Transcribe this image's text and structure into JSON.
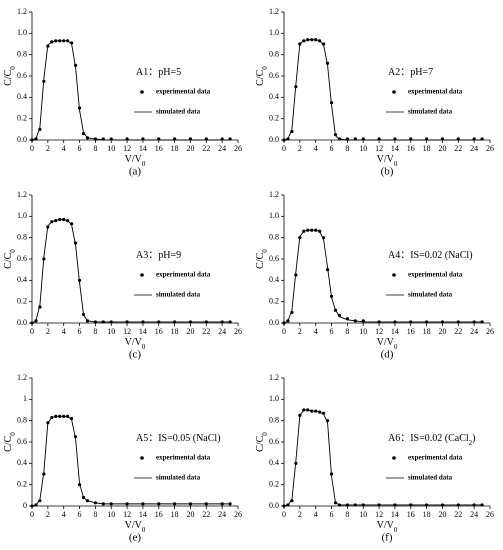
{
  "chart_data": [
    {
      "type": "line",
      "panel": "(a)",
      "annotation": [
        "A1：pH=5"
      ],
      "xlabel": [
        "V/V",
        "0"
      ],
      "ylabel": [
        "C/C",
        "0"
      ],
      "x": [
        0,
        0.5,
        1,
        1.5,
        2,
        2.5,
        3,
        3.5,
        4,
        4.5,
        5,
        5.5,
        6,
        6.5,
        7,
        8,
        9,
        10,
        12,
        14,
        16,
        18,
        20,
        22,
        24,
        25
      ],
      "series": [
        {
          "name": "experimental data",
          "style": "markers",
          "color": "#000000",
          "values": [
            0,
            0.01,
            0.1,
            0.55,
            0.88,
            0.92,
            0.93,
            0.93,
            0.93,
            0.93,
            0.91,
            0.7,
            0.3,
            0.06,
            0.02,
            0.01,
            0.01,
            0.01,
            0.01,
            0.01,
            0.01,
            0.01,
            0.01,
            0.01,
            0.01,
            0.01
          ]
        },
        {
          "name": "simulated data",
          "style": "line",
          "color": "#000000",
          "values": [
            0,
            0.01,
            0.12,
            0.58,
            0.89,
            0.92,
            0.93,
            0.93,
            0.93,
            0.93,
            0.9,
            0.68,
            0.28,
            0.07,
            0.02,
            0.01,
            0,
            0,
            0,
            0,
            0,
            0,
            0,
            0,
            0,
            0
          ]
        }
      ],
      "xlim": [
        0,
        26
      ],
      "xticks": [
        0,
        2,
        4,
        6,
        8,
        10,
        12,
        14,
        16,
        18,
        20,
        22,
        24,
        26
      ],
      "ylim": [
        0,
        1.2
      ],
      "yticks": [
        {
          "value": 0,
          "label": "0.0"
        },
        {
          "value": 0.2,
          "label": "0.2"
        },
        {
          "value": 0.4,
          "label": "0.4"
        },
        {
          "value": 0.6,
          "label": "0.6"
        },
        {
          "value": 0.8,
          "label": "0.8"
        },
        {
          "value": 1,
          "label": "1.0"
        },
        {
          "value": 1.2,
          "label": "1.2"
        }
      ]
    },
    {
      "type": "line",
      "panel": "(b)",
      "annotation": [
        "A2：pH=7"
      ],
      "xlabel": [
        "V/V",
        "0"
      ],
      "ylabel": [
        "C/C",
        "0"
      ],
      "x": [
        0,
        0.5,
        1,
        1.5,
        2,
        2.5,
        3,
        3.5,
        4,
        4.5,
        5,
        5.5,
        6,
        6.5,
        7,
        8,
        9,
        10,
        12,
        14,
        16,
        18,
        20,
        22,
        24,
        25
      ],
      "series": [
        {
          "name": "experimental data",
          "style": "markers",
          "color": "#000000",
          "values": [
            0,
            0.01,
            0.08,
            0.5,
            0.9,
            0.93,
            0.94,
            0.94,
            0.94,
            0.93,
            0.9,
            0.72,
            0.35,
            0.05,
            0.01,
            0.01,
            0.01,
            0.01,
            0.01,
            0.01,
            0.01,
            0.01,
            0.01,
            0.01,
            0.01,
            0.01
          ]
        },
        {
          "name": "simulated data",
          "style": "line",
          "color": "#000000",
          "values": [
            0,
            0.01,
            0.1,
            0.52,
            0.9,
            0.93,
            0.94,
            0.94,
            0.94,
            0.93,
            0.89,
            0.7,
            0.33,
            0.04,
            0.01,
            0,
            0,
            0,
            0,
            0,
            0,
            0,
            0,
            0,
            0,
            0
          ]
        }
      ],
      "xlim": [
        0,
        26
      ],
      "xticks": [
        0,
        2,
        4,
        6,
        8,
        10,
        12,
        14,
        16,
        18,
        20,
        22,
        24,
        26
      ],
      "ylim": [
        0,
        1.2
      ],
      "yticks": [
        {
          "value": 0,
          "label": "0.0"
        },
        {
          "value": 0.2,
          "label": "0.2"
        },
        {
          "value": 0.4,
          "label": "0.4"
        },
        {
          "value": 0.6,
          "label": "0.6"
        },
        {
          "value": 0.8,
          "label": "0.8"
        },
        {
          "value": 1,
          "label": "1.0"
        },
        {
          "value": 1.2,
          "label": "1.2"
        }
      ]
    },
    {
      "type": "line",
      "panel": "(c)",
      "annotation": [
        "A3：pH=9"
      ],
      "xlabel": [
        "V/V",
        "0"
      ],
      "ylabel": [
        "C/C",
        "0"
      ],
      "x": [
        0,
        0.5,
        1,
        1.5,
        2,
        2.5,
        3,
        3.5,
        4,
        4.5,
        5,
        5.5,
        6,
        6.5,
        7,
        8,
        9,
        10,
        12,
        14,
        16,
        18,
        20,
        22,
        24,
        25
      ],
      "series": [
        {
          "name": "experimental data",
          "style": "markers",
          "color": "#000000",
          "values": [
            0,
            0.02,
            0.15,
            0.6,
            0.9,
            0.95,
            0.96,
            0.97,
            0.97,
            0.96,
            0.93,
            0.75,
            0.4,
            0.08,
            0.02,
            0.01,
            0.01,
            0.01,
            0.01,
            0.01,
            0.01,
            0.01,
            0.01,
            0.01,
            0.01,
            0.01
          ]
        },
        {
          "name": "simulated data",
          "style": "line",
          "color": "#000000",
          "values": [
            0,
            0.02,
            0.17,
            0.62,
            0.91,
            0.95,
            0.96,
            0.97,
            0.97,
            0.96,
            0.92,
            0.73,
            0.38,
            0.08,
            0.02,
            0.01,
            0.01,
            0.01,
            0.01,
            0.01,
            0.01,
            0.01,
            0.01,
            0.01,
            0.01,
            0.01
          ]
        }
      ],
      "xlim": [
        0,
        26
      ],
      "xticks": [
        0,
        2,
        4,
        6,
        8,
        10,
        12,
        14,
        16,
        18,
        20,
        22,
        24,
        26
      ],
      "ylim": [
        0,
        1.2
      ],
      "yticks": [
        {
          "value": 0,
          "label": "0.0"
        },
        {
          "value": 0.2,
          "label": "0.2"
        },
        {
          "value": 0.4,
          "label": "0.4"
        },
        {
          "value": 0.6,
          "label": "0.6"
        },
        {
          "value": 0.8,
          "label": "0.8"
        },
        {
          "value": 1,
          "label": "1.0"
        },
        {
          "value": 1.2,
          "label": "1.2"
        }
      ]
    },
    {
      "type": "line",
      "panel": "(d)",
      "annotation": [
        "A4：IS=0.02 (NaCl)"
      ],
      "xlabel": [
        "V/V",
        "0"
      ],
      "ylabel": [
        "C/C",
        "0"
      ],
      "x": [
        0,
        0.5,
        1,
        1.5,
        2,
        2.5,
        3,
        3.5,
        4,
        4.5,
        5,
        5.5,
        6,
        6.5,
        7,
        8,
        9,
        10,
        12,
        14,
        16,
        18,
        20,
        22,
        24,
        25
      ],
      "series": [
        {
          "name": "experimental data",
          "style": "markers",
          "color": "#000000",
          "values": [
            0,
            0.02,
            0.1,
            0.45,
            0.8,
            0.86,
            0.87,
            0.87,
            0.87,
            0.86,
            0.8,
            0.5,
            0.25,
            0.12,
            0.07,
            0.04,
            0.02,
            0.02,
            0.01,
            0.01,
            0.01,
            0.01,
            0.01,
            0.01,
            0.01,
            0.01
          ]
        },
        {
          "name": "simulated data",
          "style": "line",
          "color": "#000000",
          "values": [
            0,
            0.02,
            0.12,
            0.48,
            0.81,
            0.86,
            0.87,
            0.87,
            0.87,
            0.86,
            0.78,
            0.52,
            0.24,
            0.12,
            0.06,
            0.03,
            0.02,
            0.01,
            0.01,
            0.01,
            0.01,
            0.01,
            0.01,
            0.01,
            0.01,
            0.01
          ]
        }
      ],
      "xlim": [
        0,
        26
      ],
      "xticks": [
        0,
        2,
        4,
        6,
        8,
        10,
        12,
        14,
        16,
        18,
        20,
        22,
        24,
        26
      ],
      "ylim": [
        0,
        1.2
      ],
      "yticks": [
        {
          "value": 0,
          "label": "0.0"
        },
        {
          "value": 0.2,
          "label": "0.2"
        },
        {
          "value": 0.4,
          "label": "0.4"
        },
        {
          "value": 0.6,
          "label": "0.6"
        },
        {
          "value": 0.8,
          "label": "0.8"
        },
        {
          "value": 1,
          "label": "1.0"
        },
        {
          "value": 1.2,
          "label": "1.2"
        }
      ]
    },
    {
      "type": "line",
      "panel": "(e)",
      "annotation": [
        "A5：IS=0.05 (NaCl)"
      ],
      "xlabel": [
        "V/V",
        "0"
      ],
      "ylabel": [
        "C/C",
        "0"
      ],
      "x": [
        0,
        0.5,
        1,
        1.5,
        2,
        2.5,
        3,
        3.5,
        4,
        4.5,
        5,
        5.5,
        6,
        6.5,
        7,
        8,
        9,
        10,
        12,
        14,
        16,
        18,
        20,
        22,
        24,
        25
      ],
      "series": [
        {
          "name": "experimental data",
          "style": "markers",
          "color": "#000000",
          "values": [
            0,
            0.01,
            0.05,
            0.3,
            0.78,
            0.83,
            0.84,
            0.84,
            0.84,
            0.84,
            0.82,
            0.65,
            0.2,
            0.08,
            0.05,
            0.03,
            0.02,
            0.02,
            0.02,
            0.02,
            0.02,
            0.02,
            0.02,
            0.02,
            0.02,
            0.02
          ]
        },
        {
          "name": "simulated data",
          "style": "line",
          "color": "#000000",
          "values": [
            0,
            0.01,
            0.06,
            0.32,
            0.78,
            0.83,
            0.84,
            0.84,
            0.84,
            0.84,
            0.81,
            0.63,
            0.21,
            0.08,
            0.05,
            0.03,
            0.02,
            0.02,
            0.02,
            0.02,
            0.02,
            0.02,
            0.02,
            0.02,
            0.02,
            0.02
          ]
        }
      ],
      "xlim": [
        0,
        26
      ],
      "xticks": [
        0,
        2,
        4,
        6,
        8,
        10,
        12,
        14,
        16,
        18,
        20,
        22,
        24,
        26
      ],
      "ylim": [
        0,
        1.2
      ],
      "yticks": [
        0,
        0.2,
        0.4,
        0.6,
        0.8,
        1,
        1.2
      ]
    },
    {
      "type": "line",
      "panel": "(f)",
      "annotation": [
        "A6：IS=0.02 (CaCl",
        "2",
        ")"
      ],
      "xlabel": [
        "V/V",
        "0"
      ],
      "ylabel": [
        "C/C",
        "0"
      ],
      "x": [
        0,
        0.5,
        1,
        1.5,
        2,
        2.5,
        3,
        3.5,
        4,
        4.5,
        5,
        5.5,
        6,
        6.5,
        7,
        8,
        9,
        10,
        12,
        14,
        16,
        18,
        20,
        22,
        24,
        25
      ],
      "series": [
        {
          "name": "experimental data",
          "style": "markers",
          "color": "#000000",
          "values": [
            0,
            0.01,
            0.05,
            0.4,
            0.85,
            0.9,
            0.9,
            0.89,
            0.89,
            0.88,
            0.87,
            0.8,
            0.3,
            0.03,
            0.01,
            0.01,
            0.01,
            0.01,
            0.01,
            0.01,
            0.01,
            0.01,
            0.01,
            0.01,
            0.01,
            0.01
          ]
        },
        {
          "name": "simulated data",
          "style": "line",
          "color": "#000000",
          "values": [
            0,
            0.01,
            0.06,
            0.42,
            0.85,
            0.9,
            0.9,
            0.89,
            0.89,
            0.88,
            0.86,
            0.78,
            0.28,
            0.03,
            0.01,
            0.01,
            0.01,
            0.01,
            0.01,
            0.01,
            0.01,
            0.01,
            0.01,
            0.01,
            0.01,
            0.01
          ]
        }
      ],
      "xlim": [
        0,
        26
      ],
      "xticks": [
        0,
        2,
        4,
        6,
        8,
        10,
        12,
        14,
        16,
        18,
        20,
        22,
        24,
        26
      ],
      "ylim": [
        0,
        1.2
      ],
      "yticks": [
        {
          "value": 0,
          "label": "0.0"
        },
        {
          "value": 0.2,
          "label": "0.2"
        },
        {
          "value": 0.4,
          "label": "0.4"
        },
        {
          "value": 0.6,
          "label": "0.6"
        },
        {
          "value": 0.8,
          "label": "0.8"
        },
        {
          "value": 1,
          "label": "1.0"
        },
        {
          "value": 1.2,
          "label": "1.2"
        }
      ]
    }
  ]
}
